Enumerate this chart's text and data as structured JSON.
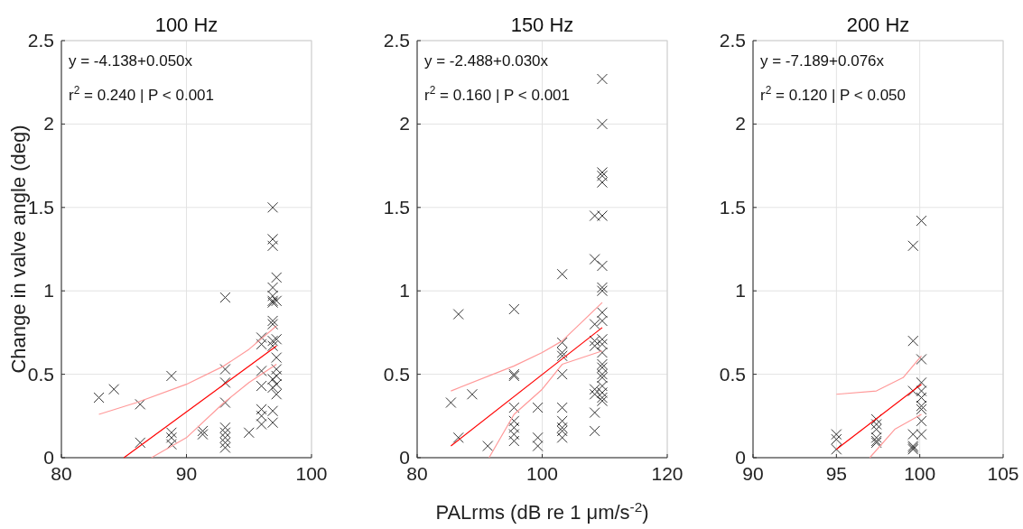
{
  "chart_data": [
    {
      "type": "scatter",
      "title": "100 Hz",
      "ylabel": "Change in valve angle (deg)",
      "xlim": [
        80,
        100
      ],
      "xticks": [
        80,
        90,
        100
      ],
      "ylim": [
        0,
        2.5
      ],
      "yticks": [
        0,
        0.5,
        1,
        1.5,
        2,
        2.5
      ],
      "grid": true,
      "annotations": [
        "y = -4.138+0.050x",
        "r$^{2}$ = 0.240 | P < 0.001"
      ],
      "series": [
        {
          "type": "scatter",
          "marker": "cross",
          "color": "#333333",
          "x": [
            83.0,
            84.2,
            86.3,
            86.3,
            88.8,
            88.8,
            88.8,
            88.8,
            91.3,
            91.3,
            93.1,
            93.1,
            93.1,
            93.1,
            93.1,
            93.1,
            93.1,
            93.1,
            93.1,
            95.0,
            96.0,
            96.0,
            96.0,
            96.0,
            96.0,
            96.0,
            96.0,
            96.9,
            96.9,
            96.9,
            96.9,
            96.9,
            96.9,
            96.9,
            96.9,
            96.9,
            96.9,
            96.9,
            96.9,
            96.9,
            96.9,
            96.9,
            97.2,
            97.2,
            97.2,
            97.2,
            97.2,
            97.2,
            97.2,
            97.2
          ],
          "values": [
            0.36,
            0.41,
            0.32,
            0.09,
            0.49,
            0.15,
            0.12,
            0.08,
            0.16,
            0.14,
            0.96,
            0.53,
            0.45,
            0.33,
            0.18,
            0.15,
            0.12,
            0.09,
            0.06,
            0.15,
            0.72,
            0.68,
            0.52,
            0.43,
            0.29,
            0.25,
            0.2,
            1.5,
            1.31,
            1.27,
            1.02,
            0.97,
            0.94,
            0.93,
            0.82,
            0.8,
            0.7,
            0.67,
            0.47,
            0.42,
            0.28,
            0.21,
            1.08,
            0.94,
            0.71,
            0.6,
            0.53,
            0.49,
            0.44,
            0.38
          ]
        },
        {
          "type": "line",
          "marker": "none",
          "color": "#ff0000",
          "x": [
            85.0,
            97.2
          ],
          "values": [
            0,
            0.67
          ]
        },
        {
          "type": "line",
          "marker": "none",
          "color": "#ff9999",
          "x": [
            83.0,
            86,
            90,
            93,
            95,
            97.2
          ],
          "values": [
            0.26,
            0.33,
            0.44,
            0.55,
            0.65,
            0.79
          ]
        },
        {
          "type": "line",
          "marker": "none",
          "color": "#ff9999",
          "x": [
            87.2,
            90,
            93,
            95,
            97.2
          ],
          "values": [
            0,
            0.12,
            0.33,
            0.45,
            0.56
          ]
        }
      ]
    },
    {
      "type": "scatter",
      "title": "150 Hz",
      "xlabel": "PALrms (dB re 1 μm/s$^{-2}$)",
      "xlim": [
        80,
        120
      ],
      "xticks": [
        80,
        100,
        120
      ],
      "ylim": [
        0,
        2.5
      ],
      "yticks": [
        0,
        0.5,
        1,
        1.5,
        2,
        2.5
      ],
      "grid": true,
      "annotations": [
        "y = -2.488+0.030x",
        "r$^{2}$ = 0.160 | P < 0.001"
      ],
      "series": [
        {
          "type": "scatter",
          "marker": "cross",
          "color": "#333333",
          "x": [
            85.4,
            86.6,
            86.6,
            88.8,
            91.3,
            95.5,
            95.5,
            95.5,
            95.5,
            95.5,
            95.5,
            95.5,
            95.5,
            99.3,
            99.3,
            99.3,
            103.2,
            103.2,
            103.2,
            103.2,
            103.2,
            103.2,
            103.2,
            103.2,
            103.2,
            103.2,
            108.4,
            108.4,
            108.4,
            108.4,
            108.4,
            108.4,
            108.4,
            108.4,
            108.4,
            109.6,
            109.6,
            109.6,
            109.6,
            109.6,
            109.6,
            109.6,
            109.6,
            109.6,
            109.6,
            109.6,
            109.6,
            109.6,
            109.6,
            109.6,
            109.6,
            109.6,
            109.6,
            109.6,
            109.6,
            109.6,
            109.6
          ],
          "values": [
            0.33,
            0.86,
            0.12,
            0.38,
            0.07,
            0.89,
            0.5,
            0.49,
            0.3,
            0.22,
            0.18,
            0.1,
            0.14,
            0.3,
            0.12,
            0.07,
            1.1,
            0.69,
            0.63,
            0.61,
            0.5,
            0.3,
            0.22,
            0.18,
            0.16,
            0.12,
            1.45,
            1.19,
            0.8,
            0.7,
            0.67,
            0.41,
            0.38,
            0.27,
            0.16,
            2.27,
            2.0,
            1.71,
            1.69,
            1.65,
            1.45,
            1.15,
            1.02,
            1.0,
            0.87,
            0.82,
            0.71,
            0.68,
            0.63,
            0.56,
            0.54,
            0.5,
            0.48,
            0.43,
            0.39,
            0.36,
            0.34
          ]
        },
        {
          "type": "line",
          "marker": "none",
          "color": "#ff0000",
          "x": [
            85.4,
            109.6
          ],
          "values": [
            0.07,
            0.78
          ]
        },
        {
          "type": "line",
          "marker": "none",
          "color": "#ff9999",
          "x": [
            85.4,
            95.5,
            100,
            103.2,
            109.6
          ],
          "values": [
            0.4,
            0.55,
            0.63,
            0.7,
            0.93
          ]
        },
        {
          "type": "line",
          "marker": "none",
          "color": "#ff9999",
          "x": [
            91.5,
            95.5,
            100,
            103.2,
            109.6
          ],
          "values": [
            0,
            0.26,
            0.41,
            0.56,
            0.64
          ]
        }
      ]
    },
    {
      "type": "scatter",
      "title": "200 Hz",
      "xlim": [
        90,
        105
      ],
      "xticks": [
        90,
        95,
        100,
        105
      ],
      "ylim": [
        0,
        2.5
      ],
      "yticks": [
        0,
        0.5,
        1,
        1.5,
        2,
        2.5
      ],
      "grid": true,
      "annotations": [
        "y = -7.189+0.076x",
        "r$^{2}$ = 0.120 | P < 0.050"
      ],
      "series": [
        {
          "type": "scatter",
          "marker": "cross",
          "color": "#333333",
          "x": [
            95.0,
            95.0,
            95.0,
            97.4,
            97.4,
            97.4,
            97.4,
            97.4,
            97.4,
            99.6,
            99.6,
            99.6,
            99.6,
            99.6,
            99.6,
            99.6,
            100.1,
            100.1,
            100.1,
            100.1,
            100.1,
            100.1,
            100.1,
            100.1,
            100.1
          ],
          "values": [
            0.14,
            0.11,
            0.05,
            0.23,
            0.2,
            0.17,
            0.12,
            0.1,
            0.09,
            1.27,
            0.7,
            0.4,
            0.14,
            0.07,
            0.06,
            0.05,
            1.42,
            0.59,
            0.45,
            0.4,
            0.36,
            0.31,
            0.29,
            0.22,
            0.14
          ]
        },
        {
          "type": "line",
          "marker": "none",
          "color": "#ff0000",
          "x": [
            95.0,
            100.1
          ],
          "values": [
            0.05,
            0.44
          ]
        },
        {
          "type": "line",
          "marker": "none",
          "color": "#ff9999",
          "x": [
            95.0,
            97.4,
            99,
            100.1
          ],
          "values": [
            0.38,
            0.4,
            0.48,
            0.61
          ]
        },
        {
          "type": "line",
          "marker": "none",
          "color": "#ff9999",
          "x": [
            97.0,
            98.5,
            100.1
          ],
          "values": [
            0,
            0.17,
            0.26
          ]
        }
      ]
    }
  ]
}
